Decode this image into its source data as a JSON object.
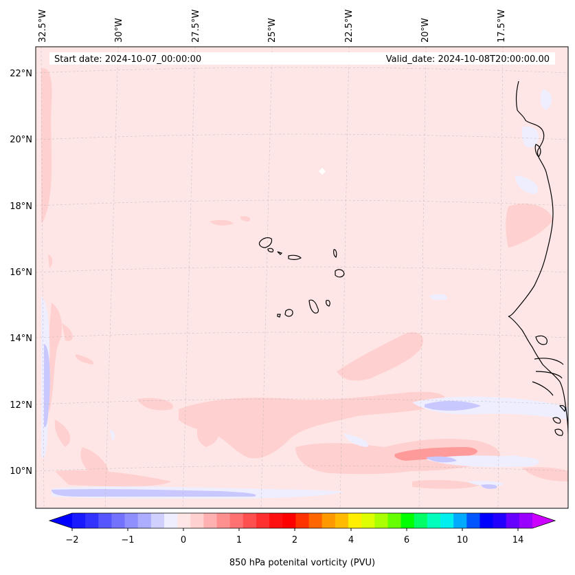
{
  "header": {
    "start_date": "Start date: 2024-10-07_00:00:00",
    "valid_date": "Valid_date: 2024-10-08T20:00:00.00"
  },
  "map": {
    "lon_labels": [
      "32.5°W",
      "30°W",
      "27.5°W",
      "25°W",
      "22.5°W",
      "20°W",
      "17.5°W"
    ],
    "lat_labels": [
      "22°N",
      "20°N",
      "18°N",
      "16°N",
      "14°N",
      "12°N",
      "10°N"
    ],
    "background_color": "#ffe6e6",
    "field_colors": {
      "light_red": "#ffd0d0",
      "red": "#ff9a9a",
      "light_blue": "#eeeeff",
      "blue": "#c8c8ff"
    }
  },
  "colorbar": {
    "label": "850 hPa potenital vorticity (PVU)",
    "tick_labels": [
      "−2",
      "−1",
      "0",
      "1",
      "2",
      "4",
      "6",
      "10",
      "14"
    ],
    "under_color": "#0000ff",
    "over_color": "#cc00ff",
    "colors": [
      "#1a1aff",
      "#3333ff",
      "#5656ff",
      "#7272ff",
      "#8f8fff",
      "#adadff",
      "#d0d0ff",
      "#eeeeff",
      "#ffe6e6",
      "#ffd0d0",
      "#ffb0b0",
      "#ff9090",
      "#ff7070",
      "#ff5050",
      "#ff3030",
      "#ff1010",
      "#ff0000",
      "#ff3300",
      "#ff6600",
      "#ff9900",
      "#ffbb00",
      "#ffee00",
      "#ddff00",
      "#aaff00",
      "#66ff00",
      "#00ff00",
      "#00ff66",
      "#00ffbb",
      "#00eeee",
      "#00aaff",
      "#0055ff",
      "#0000ff",
      "#2200ff",
      "#6600ff",
      "#9900ff"
    ]
  }
}
